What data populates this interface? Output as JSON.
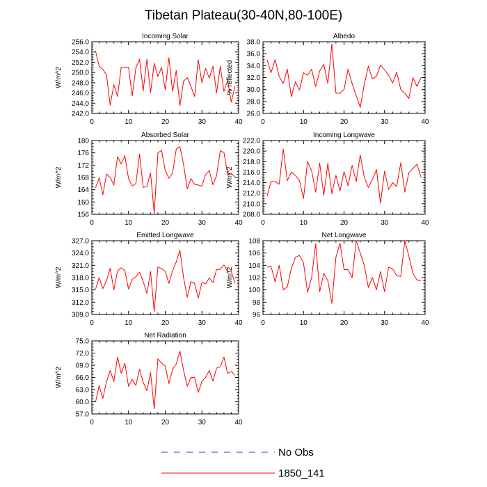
{
  "figure": {
    "title": "Tibetan Plateau(30-40N,80-100E)"
  },
  "legend": {
    "items": [
      {
        "label": "No Obs",
        "color": "#2b3bd6",
        "dash": true
      },
      {
        "label": "1850_141",
        "color": "#ff0000",
        "dash": false
      }
    ]
  },
  "chart_data": [
    {
      "type": "line",
      "title": "Incoming Solar",
      "ylabel": "W/m^2",
      "xlim": [
        0,
        40
      ],
      "ylim": [
        242,
        256
      ],
      "yticks": [
        242,
        244,
        246,
        248,
        250,
        252,
        254,
        256
      ],
      "ytick_labels": [
        "242.0",
        "244.0",
        "246.0",
        "248.0",
        "250.0",
        "252.0",
        "254.0",
        "256.0"
      ],
      "xticks": [
        0,
        10,
        20,
        30,
        40
      ],
      "series": [
        {
          "name": "1850_141",
          "color": "#ff0000",
          "x": [
            1,
            2,
            3,
            4,
            5,
            6,
            7,
            8,
            9,
            10,
            11,
            12,
            13,
            14,
            15,
            16,
            17,
            18,
            19,
            20,
            21,
            22,
            23,
            24,
            25,
            26,
            27,
            28,
            29,
            30,
            31,
            32,
            33,
            34,
            35,
            36,
            37,
            38,
            39
          ],
          "y": [
            254.2,
            251.2,
            250.6,
            249.5,
            243.6,
            247.6,
            245.3,
            251.0,
            251.0,
            251.0,
            245.4,
            250.9,
            252.6,
            246.4,
            252.6,
            246.1,
            251.8,
            249.2,
            251.0,
            246.6,
            252.9,
            246.3,
            250.4,
            243.5,
            248.3,
            249.0,
            247.3,
            245.3,
            252.5,
            248.0,
            250.8,
            248.9,
            251.2,
            246.0,
            251.2,
            246.3,
            248.4,
            244.2,
            247.3
          ]
        }
      ]
    },
    {
      "type": "line",
      "title": "Albedo",
      "ylabel": "% reflected",
      "xlim": [
        0,
        40
      ],
      "ylim": [
        26,
        38
      ],
      "yticks": [
        26,
        28,
        30,
        32,
        34,
        36,
        38
      ],
      "ytick_labels": [
        "26.0",
        "28.0",
        "30.0",
        "32.0",
        "34.0",
        "36.0",
        "38.0"
      ],
      "xticks": [
        0,
        10,
        20,
        30,
        40
      ],
      "series": [
        {
          "name": "1850_141",
          "color": "#ff0000",
          "x": [
            1,
            2,
            3,
            4,
            5,
            6,
            7,
            8,
            9,
            10,
            11,
            12,
            13,
            14,
            15,
            16,
            17,
            18,
            19,
            20,
            21,
            22,
            23,
            24,
            25,
            26,
            27,
            28,
            29,
            30,
            31,
            32,
            33,
            34,
            35,
            36,
            37,
            38,
            39
          ],
          "y": [
            35.0,
            32.8,
            35.0,
            32.2,
            31.0,
            33.4,
            28.8,
            31.3,
            29.9,
            32.8,
            32.4,
            33.4,
            30.5,
            33.1,
            34.2,
            31.0,
            37.6,
            29.4,
            29.4,
            30.0,
            33.4,
            31.0,
            29.0,
            27.0,
            30.9,
            33.9,
            31.8,
            32.2,
            34.1,
            33.3,
            32.4,
            31.1,
            32.9,
            30.0,
            29.4,
            28.5,
            32.0,
            30.5,
            32.0
          ]
        }
      ]
    },
    {
      "type": "line",
      "title": "Absorbed Solar",
      "ylabel": "W/m^2",
      "xlim": [
        0,
        40
      ],
      "ylim": [
        156,
        180
      ],
      "yticks": [
        156,
        160,
        164,
        168,
        172,
        176,
        180
      ],
      "ytick_labels": [
        "156",
        "160",
        "164",
        "168",
        "172",
        "176",
        "180"
      ],
      "xticks": [
        0,
        10,
        20,
        30,
        40
      ],
      "series": [
        {
          "name": "1850_141",
          "color": "#ff0000",
          "x": [
            1,
            2,
            3,
            4,
            5,
            6,
            7,
            8,
            9,
            10,
            11,
            12,
            13,
            14,
            15,
            16,
            17,
            18,
            19,
            20,
            21,
            22,
            23,
            24,
            25,
            26,
            27,
            28,
            29,
            30,
            31,
            32,
            33,
            34,
            35,
            36,
            37,
            38,
            39
          ],
          "y": [
            164.6,
            167.9,
            162.3,
            169.1,
            168.0,
            165.5,
            174.8,
            172.4,
            175.1,
            167.6,
            165.2,
            166.0,
            175.6,
            164.7,
            165.1,
            169.4,
            156.3,
            176.0,
            176.8,
            170.3,
            167.7,
            169.4,
            177.2,
            178.0,
            172.2,
            164.2,
            167.6,
            165.8,
            165.5,
            165.2,
            169.0,
            170.2,
            165.6,
            168.6,
            176.7,
            176.1,
            169.0,
            169.4,
            168.0
          ]
        }
      ]
    },
    {
      "type": "line",
      "title": "Incoming Longwave",
      "ylabel": "W/m^2",
      "xlim": [
        0,
        40
      ],
      "ylim": [
        208,
        222
      ],
      "yticks": [
        208,
        210,
        212,
        214,
        216,
        218,
        220,
        222
      ],
      "ytick_labels": [
        "208.0",
        "210.0",
        "212.0",
        "214.0",
        "216.0",
        "218.0",
        "220.0",
        "222.0"
      ],
      "xticks": [
        0,
        10,
        20,
        30,
        40
      ],
      "series": [
        {
          "name": "1850_141",
          "color": "#ff0000",
          "x": [
            1,
            2,
            3,
            4,
            5,
            6,
            7,
            8,
            9,
            10,
            11,
            12,
            13,
            14,
            15,
            16,
            17,
            18,
            19,
            20,
            21,
            22,
            23,
            24,
            25,
            26,
            27,
            28,
            29,
            30,
            31,
            32,
            33,
            34,
            35,
            36,
            37,
            38,
            39
          ],
          "y": [
            211.4,
            214.2,
            214.2,
            213.7,
            220.4,
            214.4,
            216.0,
            215.4,
            214.4,
            211.0,
            218.0,
            216.3,
            212.2,
            217.7,
            211.6,
            217.7,
            211.9,
            215.4,
            212.4,
            216.1,
            213.4,
            217.3,
            214.2,
            219.3,
            215.0,
            213.1,
            214.6,
            216.5,
            210.1,
            216.2,
            212.7,
            214.0,
            213.3,
            217.8,
            212.2,
            215.9,
            216.7,
            217.5,
            215.0
          ]
        }
      ]
    },
    {
      "type": "line",
      "title": "Emitted Longwave",
      "ylabel": "W/m^2",
      "xlim": [
        0,
        40
      ],
      "ylim": [
        309,
        327
      ],
      "yticks": [
        309,
        312,
        315,
        318,
        321,
        324,
        327
      ],
      "ytick_labels": [
        "309.0",
        "312.0",
        "315.0",
        "318.0",
        "321.0",
        "324.0",
        "327.0"
      ],
      "xticks": [
        0,
        10,
        20,
        30,
        40
      ],
      "series": [
        {
          "name": "1850_141",
          "color": "#ff0000",
          "x": [
            1,
            2,
            3,
            4,
            5,
            6,
            7,
            8,
            9,
            10,
            11,
            12,
            13,
            14,
            15,
            16,
            17,
            18,
            19,
            20,
            21,
            22,
            23,
            24,
            25,
            26,
            27,
            28,
            29,
            30,
            31,
            32,
            33,
            34,
            35,
            36,
            37,
            38,
            39
          ],
          "y": [
            315.2,
            318.0,
            315.3,
            317.2,
            320.3,
            315.0,
            319.6,
            320.4,
            319.7,
            315.2,
            317.6,
            318.2,
            319.3,
            317.0,
            314.1,
            319.5,
            309.7,
            320.6,
            320.2,
            319.5,
            316.6,
            319.7,
            321.8,
            324.7,
            318.0,
            313.2,
            317.0,
            316.6,
            313.0,
            316.8,
            316.5,
            317.9,
            316.8,
            320.0,
            320.0,
            321.1,
            319.5,
            319.5,
            316.6
          ]
        }
      ]
    },
    {
      "type": "line",
      "title": "Net Longwave",
      "ylabel": "W/m^2",
      "xlim": [
        0,
        40
      ],
      "ylim": [
        96,
        108
      ],
      "yticks": [
        96,
        98,
        100,
        102,
        104,
        106,
        108
      ],
      "ytick_labels": [
        "96",
        "98",
        "100",
        "102",
        "104",
        "106",
        "108"
      ],
      "xticks": [
        0,
        10,
        20,
        30,
        40
      ],
      "series": [
        {
          "name": "1850_141",
          "color": "#ff0000",
          "x": [
            1,
            2,
            3,
            4,
            5,
            6,
            7,
            8,
            9,
            10,
            11,
            12,
            13,
            14,
            15,
            16,
            17,
            18,
            19,
            20,
            21,
            22,
            23,
            24,
            25,
            26,
            27,
            28,
            29,
            30,
            31,
            32,
            33,
            34,
            35,
            36,
            37,
            38,
            39
          ],
          "y": [
            103.7,
            103.8,
            101.3,
            104.0,
            100.0,
            100.5,
            103.5,
            105.3,
            105.6,
            104.4,
            99.6,
            102.0,
            107.5,
            99.7,
            102.7,
            101.5,
            97.8,
            105.3,
            107.6,
            103.3,
            103.3,
            102.0,
            108.0,
            106.0,
            104.0,
            100.4,
            102.0,
            100.0,
            103.0,
            99.7,
            103.7,
            103.4,
            102.3,
            102.2,
            108.0,
            105.5,
            102.7,
            101.6,
            101.5
          ]
        }
      ]
    },
    {
      "type": "line",
      "title": "Net Radiation",
      "ylabel": "W/m^2",
      "xlim": [
        0,
        40
      ],
      "ylim": [
        57,
        75
      ],
      "yticks": [
        57,
        60,
        63,
        66,
        69,
        72,
        75
      ],
      "ytick_labels": [
        "57.0",
        "60.0",
        "63.0",
        "66.0",
        "69.0",
        "72.0",
        "75.0"
      ],
      "xticks": [
        0,
        10,
        20,
        30,
        40
      ],
      "series": [
        {
          "name": "1850_141",
          "color": "#ff0000",
          "x": [
            1,
            2,
            3,
            4,
            5,
            6,
            7,
            8,
            9,
            10,
            11,
            12,
            13,
            14,
            15,
            16,
            17,
            18,
            19,
            20,
            21,
            22,
            23,
            24,
            25,
            26,
            27,
            28,
            29,
            30,
            31,
            32,
            33,
            34,
            35,
            36,
            37,
            38,
            39
          ],
          "y": [
            59.9,
            64.0,
            60.8,
            65.0,
            67.7,
            65.0,
            71.0,
            67.0,
            69.5,
            63.8,
            65.5,
            64.0,
            68.0,
            64.8,
            62.7,
            67.2,
            58.3,
            70.6,
            69.5,
            68.8,
            64.5,
            68.0,
            69.3,
            72.5,
            67.7,
            63.8,
            66.0,
            66.0,
            62.3,
            65.0,
            66.0,
            67.7,
            65.1,
            68.3,
            68.6,
            71.0,
            67.0,
            67.5,
            66.5
          ]
        }
      ]
    }
  ]
}
